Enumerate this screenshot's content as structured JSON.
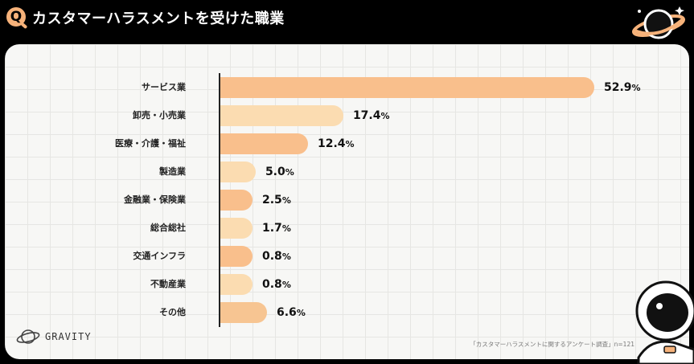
{
  "header": {
    "q_icon": "Q",
    "title": "カスタマーハラスメントを受けた職業"
  },
  "brand": {
    "name": "GRAVITY",
    "icon": "planet-icon"
  },
  "source": "「カスタマーハラスメントに関するアンケート調査」n=121",
  "colors": {
    "accent": "#f6b27a",
    "background": "#000000",
    "panel": "#f7f7f5"
  },
  "chart_data": {
    "type": "bar",
    "orientation": "horizontal",
    "title": "カスタマーハラスメントを受けた職業",
    "categories": [
      "サービス業",
      "卸売・小売業",
      "医療・介護・福祉",
      "製造業",
      "金融業・保険業",
      "総合総社",
      "交通インフラ",
      "不動産業",
      "その他"
    ],
    "values": [
      52.9,
      17.4,
      12.4,
      5.0,
      2.5,
      1.7,
      0.8,
      0.8,
      6.6
    ],
    "value_labels": [
      "52.9",
      "17.4",
      "12.4",
      "5.0",
      "2.5",
      "1.7",
      "0.8",
      "0.8",
      "6.6"
    ],
    "unit": "%",
    "bar_colors": [
      "#f9bf8c",
      "#fbdcb1",
      "#f9bf8c",
      "#fbdcb1",
      "#f9bf8c",
      "#fbdcb1",
      "#f9bf8c",
      "#fbdcb1",
      "#f7c592"
    ],
    "xlim": [
      0,
      54
    ],
    "grid": true,
    "legend": "none",
    "source": "「カスタマーハラスメントに関するアンケート調査」n=121"
  }
}
